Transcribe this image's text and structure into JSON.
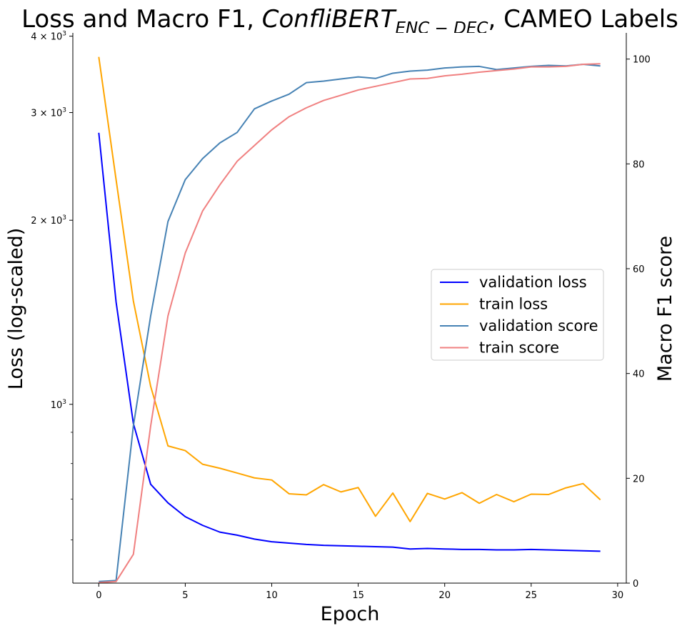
{
  "chart_data": {
    "type": "line",
    "title_main": "Loss and Macro F1, ",
    "title_model": "ConfliBERT",
    "title_subscript": "ENC − DEC",
    "title_tail": ", CAMEO Labels",
    "xlabel": "Epoch",
    "ylabel_left": "Loss (log-scaled)",
    "ylabel_right": "Macro F1 score",
    "left_axis_scale": "log",
    "x_range": [
      -1.5,
      30.5
    ],
    "left_range": [
      510,
      4050
    ],
    "right_range": [
      0,
      105
    ],
    "x_ticks": [
      0,
      5,
      10,
      15,
      20,
      25,
      30
    ],
    "x_tick_labels": [
      "0",
      "5",
      "10",
      "15",
      "20",
      "25",
      "30"
    ],
    "left_ticks": [
      {
        "value": 1000,
        "base": "10",
        "exp": "3",
        "mantissa": ""
      },
      {
        "value": 2000,
        "base": "10",
        "exp": "3",
        "mantissa": "2"
      },
      {
        "value": 3000,
        "base": "10",
        "exp": "3",
        "mantissa": "3"
      },
      {
        "value": 4000,
        "base": "10",
        "exp": "3",
        "mantissa": "4"
      }
    ],
    "times_sign": "×",
    "left_minor_ticks": [
      600,
      700,
      800,
      900
    ],
    "right_ticks": [
      0,
      20,
      40,
      60,
      80,
      100
    ],
    "right_tick_labels": [
      "0",
      "20",
      "40",
      "60",
      "80",
      "100"
    ],
    "grid": false,
    "legend_position": "center-right",
    "x": [
      0,
      1,
      2,
      3,
      4,
      5,
      6,
      7,
      8,
      9,
      10,
      11,
      12,
      13,
      14,
      15,
      16,
      17,
      18,
      19,
      20,
      21,
      22,
      23,
      24,
      25,
      26,
      27,
      28,
      29
    ],
    "series": [
      {
        "name": "validation loss",
        "axis": "left",
        "color": "#0000ff",
        "values": [
          2780,
          1470,
          930,
          740,
          690,
          655,
          634,
          618,
          611,
          602,
          596,
          593,
          590,
          588,
          587,
          586,
          585,
          584,
          580,
          581,
          580,
          579,
          579,
          578,
          578,
          579,
          578,
          577,
          576,
          575
        ]
      },
      {
        "name": "train loss",
        "axis": "left",
        "color": "#ffa500",
        "values": [
          3700,
          2330,
          1475,
          1070,
          855,
          840,
          798,
          786,
          772,
          758,
          752,
          714,
          711,
          739,
          719,
          731,
          656,
          716,
          643,
          715,
          700,
          717,
          689,
          712,
          693,
          713,
          712,
          730,
          742,
          698
        ]
      },
      {
        "name": "validation score",
        "axis": "right",
        "color": "#4682b4",
        "values": [
          0.3,
          0.5,
          30,
          51,
          69,
          77,
          81,
          84,
          86,
          90.5,
          92,
          93.3,
          95.5,
          95.8,
          96.2,
          96.6,
          96.3,
          97.3,
          97.7,
          97.9,
          98.3,
          98.5,
          98.6,
          98.0,
          98.3,
          98.6,
          98.8,
          98.7,
          99.0,
          98.7
        ]
      },
      {
        "name": "train score",
        "axis": "right",
        "color": "#f08080",
        "values": [
          0.1,
          0.3,
          5.5,
          30,
          51,
          63,
          71,
          76,
          80.5,
          83.5,
          86.5,
          89,
          90.7,
          92.1,
          93.1,
          94.1,
          94.8,
          95.5,
          96.2,
          96.3,
          96.8,
          97.1,
          97.5,
          97.8,
          98.1,
          98.5,
          98.5,
          98.6,
          99.0,
          99.1
        ]
      }
    ]
  }
}
